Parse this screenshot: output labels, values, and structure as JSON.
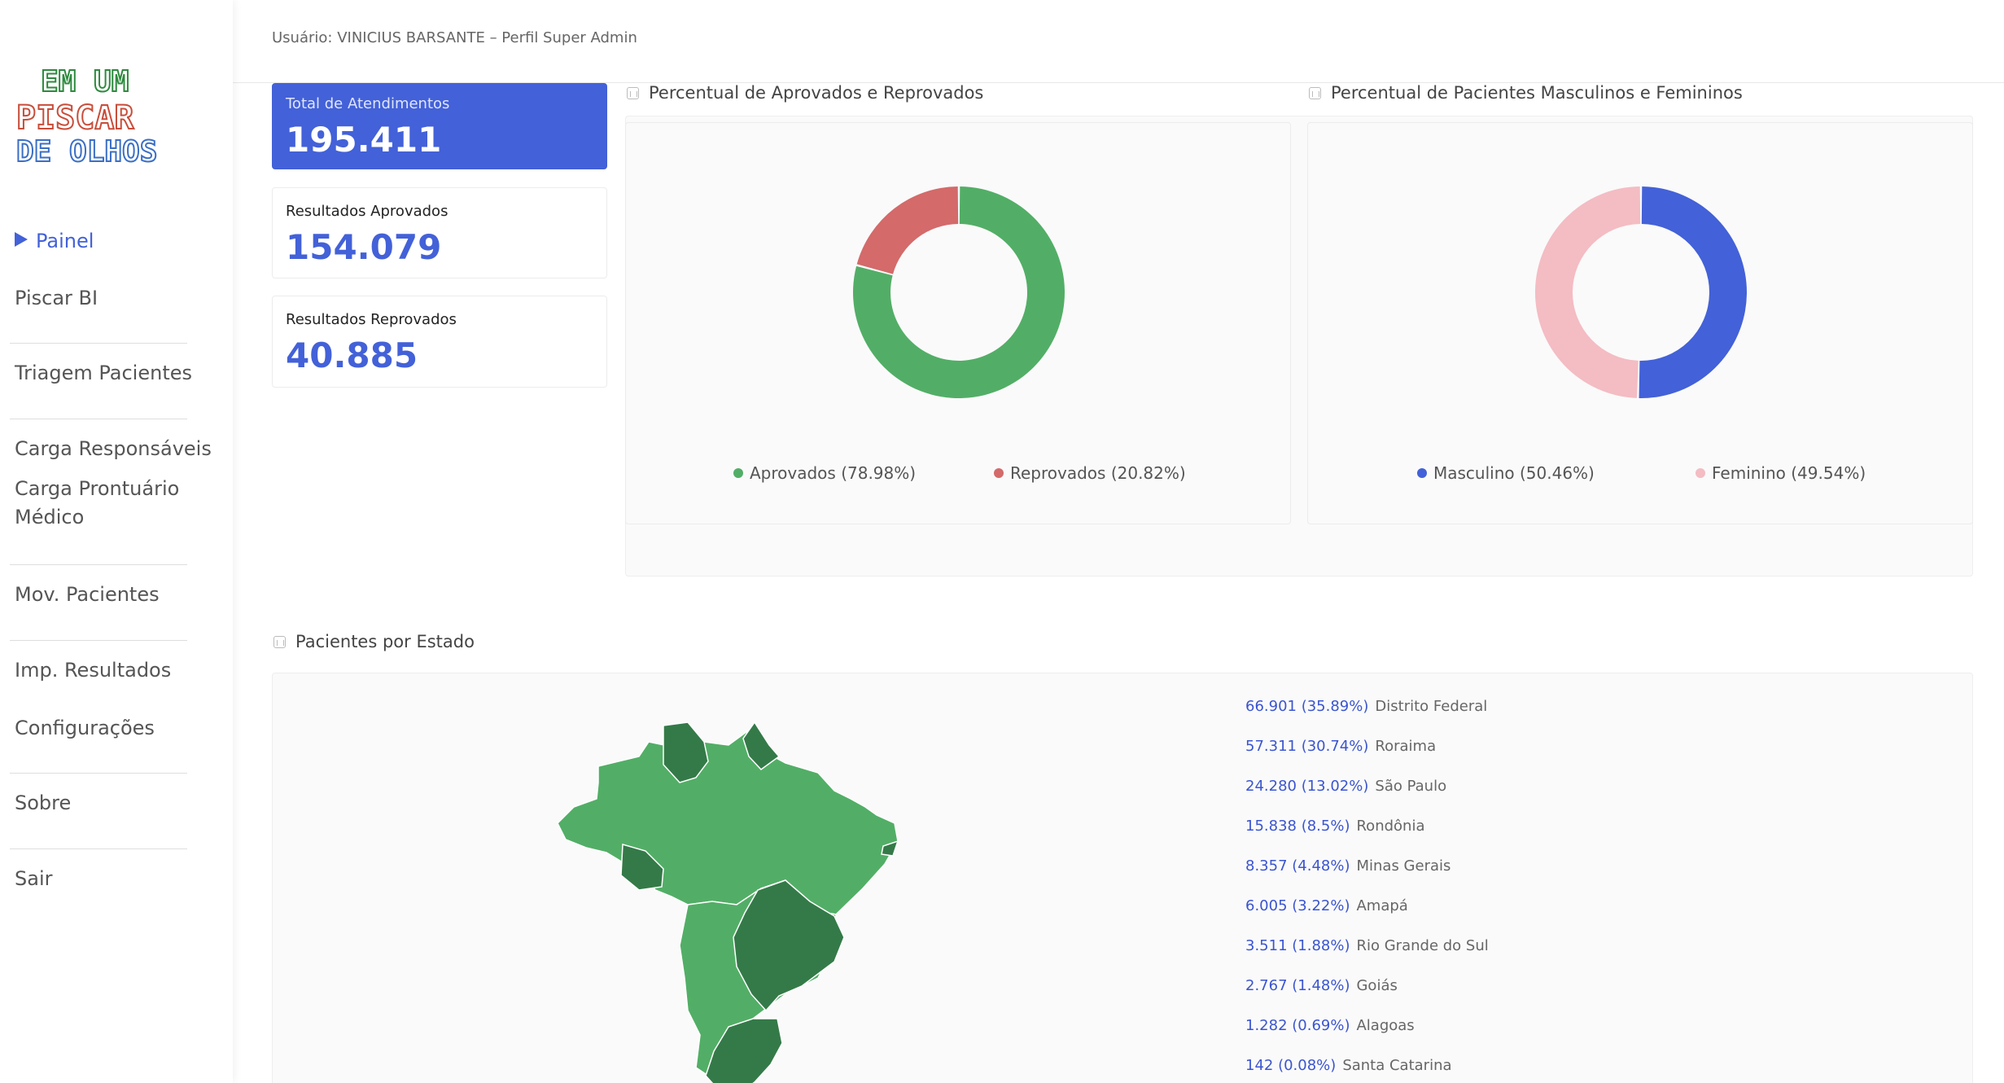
{
  "user": {
    "label": "Usuário: VINICIUS BARSANTE – Perfil Super Admin"
  },
  "logo": {
    "line1": "EM UM",
    "line2": "PISCAR",
    "line3": "DE OLHOS"
  },
  "sidebar": {
    "items": [
      {
        "label": "Painel",
        "active": true
      },
      {
        "label": "Piscar BI"
      },
      {
        "label": "Triagem Pacientes"
      },
      {
        "label": "Carga Responsáveis"
      },
      {
        "label": "Carga Prontuário"
      },
      {
        "label": "Médico"
      },
      {
        "label": "Mov. Pacientes"
      },
      {
        "label": "Imp. Resultados"
      },
      {
        "label": "Configurações"
      },
      {
        "label": "Sobre"
      },
      {
        "label": "Sair"
      }
    ]
  },
  "stats": {
    "total_label": "Total de Atendimentos",
    "total_value": "195.411",
    "approved_label": "Resultados Aprovados",
    "approved_value": "154.079",
    "rejected_label": "Resultados Reprovados",
    "rejected_value": "40.885"
  },
  "charts": {
    "approval_title": "Percentual de Aprovados e Reprovados",
    "gender_title": "Percentual de Pacientes Masculinos e Femininos",
    "states_title": "Pacientes por Estado"
  },
  "chart_data": [
    {
      "type": "pie",
      "labels": [
        "Aprovados (78.98%)",
        "Reprovados (20.82%)"
      ],
      "values": [
        78.98,
        20.82
      ],
      "colors": [
        "#52ae66",
        "#d46a6a"
      ]
    },
    {
      "type": "pie",
      "labels": [
        "Masculino (50.46%)",
        "Feminino (49.54%)"
      ],
      "values": [
        50.46,
        49.54
      ],
      "colors": [
        "#4361d8",
        "#f4bcc3"
      ]
    }
  ],
  "states": [
    {
      "value": "66.901 (35.89%)",
      "name": "Distrito Federal"
    },
    {
      "value": "57.311 (30.74%)",
      "name": "Roraima"
    },
    {
      "value": "24.280 (13.02%)",
      "name": "São Paulo"
    },
    {
      "value": "15.838 (8.5%)",
      "name": "Rondônia"
    },
    {
      "value": "8.357 (4.48%)",
      "name": "Minas Gerais"
    },
    {
      "value": "6.005 (3.22%)",
      "name": "Amapá"
    },
    {
      "value": "3.511 (1.88%)",
      "name": "Rio Grande do Sul"
    },
    {
      "value": "2.767 (1.48%)",
      "name": "Goiás"
    },
    {
      "value": "1.282 (0.69%)",
      "name": "Alagoas"
    },
    {
      "value": "142 (0.08%)",
      "name": "Santa Catarina"
    }
  ],
  "colors": {
    "accent": "#4361d8",
    "map_light": "#52ae66",
    "map_dark": "#347a48"
  }
}
